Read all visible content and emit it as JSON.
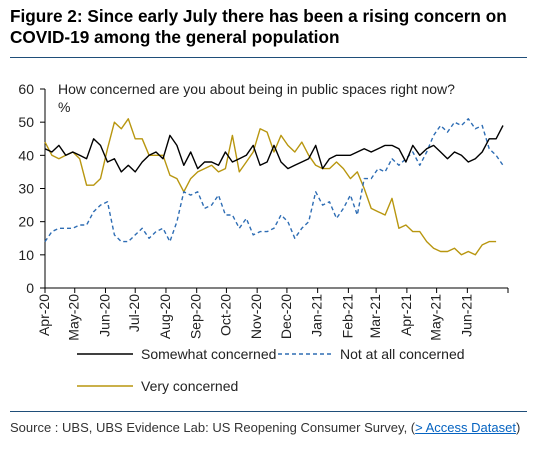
{
  "figure": {
    "title": "Figure 2: Since early July there has been a rising concern on COVID-19 among the general population"
  },
  "source": {
    "text": "Source : UBS, UBS Evidence Lab: US Reopening Consumer Survey, (",
    "link_text": "> Access Dataset",
    "tail": ")"
  },
  "chart_data": {
    "type": "line",
    "title": "How concerned are you about being in public spaces right now?",
    "ylabel": "%",
    "xlabel": "",
    "ylim": [
      0,
      60
    ],
    "yticks": [
      0,
      10,
      20,
      30,
      40,
      50,
      60
    ],
    "xlim": [
      "2020-04-01",
      "2021-07-12"
    ],
    "x_tick_labels": [
      "Apr-20",
      "May-20",
      "Jun-20",
      "Jul-20",
      "Aug-20",
      "Sep-20",
      "Oct-20",
      "Nov-20",
      "Dec-20",
      "Jan-21",
      "Feb-21",
      "Mar-21",
      "Apr-21",
      "May-21",
      "Jun-21"
    ],
    "grid": false,
    "legend_position": "bottom",
    "series": [
      {
        "name": "Somewhat concerned",
        "color": "#000000",
        "dash": "solid",
        "points": [
          [
            "2020-04-01",
            42
          ],
          [
            "2020-04-08",
            41
          ],
          [
            "2020-04-15",
            43
          ],
          [
            "2020-04-22",
            40
          ],
          [
            "2020-04-29",
            41
          ],
          [
            "2020-05-06",
            40
          ],
          [
            "2020-05-13",
            39
          ],
          [
            "2020-05-20",
            45
          ],
          [
            "2020-05-27",
            43
          ],
          [
            "2020-06-03",
            38
          ],
          [
            "2020-06-10",
            39
          ],
          [
            "2020-06-17",
            35
          ],
          [
            "2020-06-24",
            37
          ],
          [
            "2020-07-01",
            35
          ],
          [
            "2020-07-08",
            38
          ],
          [
            "2020-07-15",
            40
          ],
          [
            "2020-07-22",
            41
          ],
          [
            "2020-07-29",
            39
          ],
          [
            "2020-08-05",
            46
          ],
          [
            "2020-08-12",
            43
          ],
          [
            "2020-08-19",
            37
          ],
          [
            "2020-08-26",
            41
          ],
          [
            "2020-09-02",
            36
          ],
          [
            "2020-09-09",
            38
          ],
          [
            "2020-09-16",
            38
          ],
          [
            "2020-09-23",
            37
          ],
          [
            "2020-09-30",
            41
          ],
          [
            "2020-10-07",
            38
          ],
          [
            "2020-10-14",
            39
          ],
          [
            "2020-10-21",
            40
          ],
          [
            "2020-10-28",
            43
          ],
          [
            "2020-11-04",
            37
          ],
          [
            "2020-11-11",
            38
          ],
          [
            "2020-11-18",
            43
          ],
          [
            "2020-11-25",
            38
          ],
          [
            "2020-12-02",
            36
          ],
          [
            "2020-12-09",
            37
          ],
          [
            "2020-12-16",
            38
          ],
          [
            "2020-12-23",
            39
          ],
          [
            "2020-12-30",
            43
          ],
          [
            "2021-01-06",
            36
          ],
          [
            "2021-01-13",
            39
          ],
          [
            "2021-01-20",
            40
          ],
          [
            "2021-01-27",
            40
          ],
          [
            "2021-02-03",
            40
          ],
          [
            "2021-02-10",
            41
          ],
          [
            "2021-02-17",
            42
          ],
          [
            "2021-02-24",
            41
          ],
          [
            "2021-03-03",
            42
          ],
          [
            "2021-03-10",
            43
          ],
          [
            "2021-03-17",
            43
          ],
          [
            "2021-03-24",
            42
          ],
          [
            "2021-03-31",
            38
          ],
          [
            "2021-04-07",
            43
          ],
          [
            "2021-04-14",
            40
          ],
          [
            "2021-04-21",
            42
          ],
          [
            "2021-04-28",
            43
          ],
          [
            "2021-05-05",
            41
          ],
          [
            "2021-05-12",
            39
          ],
          [
            "2021-05-19",
            41
          ],
          [
            "2021-05-26",
            40
          ],
          [
            "2021-06-02",
            38
          ],
          [
            "2021-06-09",
            39
          ],
          [
            "2021-06-16",
            41
          ],
          [
            "2021-06-23",
            45
          ],
          [
            "2021-06-30",
            45
          ],
          [
            "2021-07-07",
            49
          ]
        ]
      },
      {
        "name": "Not at all concerned",
        "color": "#2e6db4",
        "dash": "dashed",
        "points": [
          [
            "2020-04-01",
            14
          ],
          [
            "2020-04-08",
            17
          ],
          [
            "2020-04-15",
            18
          ],
          [
            "2020-04-22",
            18
          ],
          [
            "2020-04-29",
            18
          ],
          [
            "2020-05-06",
            19
          ],
          [
            "2020-05-13",
            19
          ],
          [
            "2020-05-20",
            23
          ],
          [
            "2020-05-27",
            25
          ],
          [
            "2020-06-03",
            26
          ],
          [
            "2020-06-10",
            16
          ],
          [
            "2020-06-17",
            14
          ],
          [
            "2020-06-24",
            14
          ],
          [
            "2020-07-01",
            16
          ],
          [
            "2020-07-08",
            18
          ],
          [
            "2020-07-15",
            15
          ],
          [
            "2020-07-22",
            17
          ],
          [
            "2020-07-29",
            18
          ],
          [
            "2020-08-05",
            14
          ],
          [
            "2020-08-12",
            20
          ],
          [
            "2020-08-19",
            29
          ],
          [
            "2020-08-26",
            28
          ],
          [
            "2020-09-02",
            29
          ],
          [
            "2020-09-09",
            24
          ],
          [
            "2020-09-16",
            25
          ],
          [
            "2020-09-23",
            28
          ],
          [
            "2020-09-30",
            22
          ],
          [
            "2020-10-07",
            22
          ],
          [
            "2020-10-14",
            18
          ],
          [
            "2020-10-21",
            21
          ],
          [
            "2020-10-28",
            16
          ],
          [
            "2020-11-04",
            17
          ],
          [
            "2020-11-11",
            17
          ],
          [
            "2020-11-18",
            18
          ],
          [
            "2020-11-25",
            22
          ],
          [
            "2020-12-02",
            20
          ],
          [
            "2020-12-09",
            15
          ],
          [
            "2020-12-16",
            18
          ],
          [
            "2020-12-23",
            20
          ],
          [
            "2020-12-30",
            29
          ],
          [
            "2021-01-06",
            25
          ],
          [
            "2021-01-13",
            26
          ],
          [
            "2021-01-20",
            21
          ],
          [
            "2021-01-27",
            24
          ],
          [
            "2021-02-03",
            28
          ],
          [
            "2021-02-10",
            22
          ],
          [
            "2021-02-17",
            33
          ],
          [
            "2021-02-24",
            33
          ],
          [
            "2021-03-03",
            36
          ],
          [
            "2021-03-10",
            35
          ],
          [
            "2021-03-17",
            39
          ],
          [
            "2021-03-24",
            37
          ],
          [
            "2021-03-31",
            39
          ],
          [
            "2021-04-07",
            41
          ],
          [
            "2021-04-14",
            37
          ],
          [
            "2021-04-21",
            41
          ],
          [
            "2021-04-28",
            46
          ],
          [
            "2021-05-05",
            49
          ],
          [
            "2021-05-12",
            47
          ],
          [
            "2021-05-19",
            50
          ],
          [
            "2021-05-26",
            49
          ],
          [
            "2021-06-02",
            51
          ],
          [
            "2021-06-09",
            48
          ],
          [
            "2021-06-16",
            49
          ],
          [
            "2021-06-23",
            42
          ],
          [
            "2021-06-30",
            40
          ],
          [
            "2021-07-07",
            37
          ]
        ]
      },
      {
        "name": "Very concerned",
        "color": "#b8960f",
        "dash": "solid",
        "points": [
          [
            "2020-04-01",
            44
          ],
          [
            "2020-04-08",
            40
          ],
          [
            "2020-04-15",
            39
          ],
          [
            "2020-04-22",
            40
          ],
          [
            "2020-04-29",
            41
          ],
          [
            "2020-05-06",
            39
          ],
          [
            "2020-05-13",
            31
          ],
          [
            "2020-05-20",
            31
          ],
          [
            "2020-05-27",
            33
          ],
          [
            "2020-06-03",
            42
          ],
          [
            "2020-06-10",
            50
          ],
          [
            "2020-06-17",
            48
          ],
          [
            "2020-06-24",
            51
          ],
          [
            "2020-07-01",
            45
          ],
          [
            "2020-07-08",
            45
          ],
          [
            "2020-07-15",
            40
          ],
          [
            "2020-07-22",
            40
          ],
          [
            "2020-07-29",
            40
          ],
          [
            "2020-08-05",
            34
          ],
          [
            "2020-08-12",
            33
          ],
          [
            "2020-08-19",
            29
          ],
          [
            "2020-08-26",
            33
          ],
          [
            "2020-09-02",
            35
          ],
          [
            "2020-09-09",
            36
          ],
          [
            "2020-09-16",
            37
          ],
          [
            "2020-09-23",
            35
          ],
          [
            "2020-09-30",
            36
          ],
          [
            "2020-10-07",
            46
          ],
          [
            "2020-10-14",
            35
          ],
          [
            "2020-10-21",
            38
          ],
          [
            "2020-10-28",
            41
          ],
          [
            "2020-11-04",
            48
          ],
          [
            "2020-11-11",
            47
          ],
          [
            "2020-11-18",
            41
          ],
          [
            "2020-11-25",
            46
          ],
          [
            "2020-12-02",
            43
          ],
          [
            "2020-12-09",
            41
          ],
          [
            "2020-12-16",
            44
          ],
          [
            "2020-12-23",
            40
          ],
          [
            "2020-12-30",
            37
          ],
          [
            "2021-01-06",
            36
          ],
          [
            "2021-01-13",
            36
          ],
          [
            "2021-01-20",
            38
          ],
          [
            "2021-01-27",
            36
          ],
          [
            "2021-02-03",
            33
          ],
          [
            "2021-02-10",
            35
          ],
          [
            "2021-02-17",
            30
          ],
          [
            "2021-02-24",
            24
          ],
          [
            "2021-03-03",
            23
          ],
          [
            "2021-03-10",
            22
          ],
          [
            "2021-03-17",
            27
          ],
          [
            "2021-03-24",
            18
          ],
          [
            "2021-03-31",
            19
          ],
          [
            "2021-04-07",
            17
          ],
          [
            "2021-04-14",
            17
          ],
          [
            "2021-04-21",
            14
          ],
          [
            "2021-04-28",
            12
          ],
          [
            "2021-05-05",
            11
          ],
          [
            "2021-05-12",
            11
          ],
          [
            "2021-05-19",
            12
          ],
          [
            "2021-05-26",
            10
          ],
          [
            "2021-06-02",
            11
          ],
          [
            "2021-06-09",
            10
          ],
          [
            "2021-06-16",
            13
          ],
          [
            "2021-06-23",
            14
          ],
          [
            "2021-06-30",
            14
          ]
        ]
      }
    ]
  }
}
